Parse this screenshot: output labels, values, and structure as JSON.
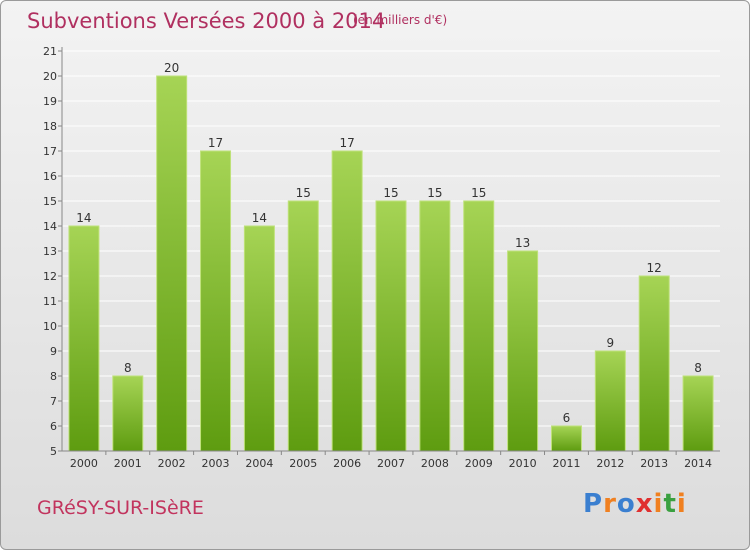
{
  "header": {
    "title": "Subventions Versées 2000 à 2014",
    "subtitle": "(en milliers d'€)"
  },
  "footer": {
    "commune": "GRéSY-SUR-ISèRE",
    "logo_text": "Proxiti",
    "logo_colors": [
      "#3a7fd0",
      "#f08020",
      "#3a7fd0",
      "#e03030",
      "#f08020",
      "#3aa040",
      "#f08020"
    ]
  },
  "chart_data": {
    "type": "bar",
    "categories": [
      "2000",
      "2001",
      "2002",
      "2003",
      "2004",
      "2005",
      "2006",
      "2007",
      "2008",
      "2009",
      "2010",
      "2011",
      "2012",
      "2013",
      "2014"
    ],
    "values": [
      14,
      8,
      20,
      17,
      14,
      15,
      17,
      15,
      15,
      15,
      13,
      6,
      9,
      12,
      8
    ],
    "ylim": [
      5,
      21
    ],
    "yticks": [
      5,
      6,
      7,
      8,
      9,
      10,
      11,
      12,
      13,
      14,
      15,
      16,
      17,
      18,
      19,
      20,
      21
    ],
    "grid": true,
    "colors": {
      "bar_top": "#a6d455",
      "bar_bottom": "#5e9c10",
      "bar_edge": "#bfe27a"
    }
  }
}
